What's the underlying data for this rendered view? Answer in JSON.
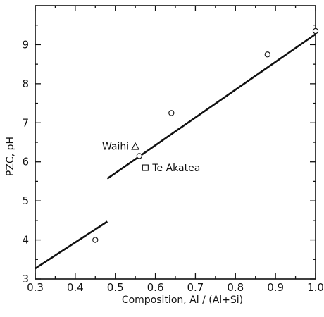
{
  "chart_data": {
    "type": "scatter",
    "xlabel": "Composition,  Al / (Al+Si)",
    "ylabel": "PZC,   pH",
    "xlim": [
      0.3,
      1.0
    ],
    "ylim": [
      3,
      10
    ],
    "xticks": [
      "0.3",
      "0.4",
      "0.5",
      "0.6",
      "0.7",
      "0.8",
      "0.9",
      "1.0"
    ],
    "yticks": [
      "3",
      "4",
      "5",
      "6",
      "7",
      "8",
      "9"
    ],
    "grid": false,
    "series": [
      {
        "marker": "circle",
        "points": [
          {
            "x": 0.45,
            "y": 4.0
          },
          {
            "x": 0.56,
            "y": 6.15
          },
          {
            "x": 0.64,
            "y": 7.25
          },
          {
            "x": 0.88,
            "y": 8.75
          },
          {
            "x": 1.0,
            "y": 9.35
          }
        ]
      },
      {
        "name": "Waihi",
        "marker": "triangle",
        "points": [
          {
            "x": 0.55,
            "y": 6.4
          }
        ]
      },
      {
        "name": "Te Akatea",
        "marker": "square",
        "points": [
          {
            "x": 0.575,
            "y": 5.85
          }
        ]
      }
    ],
    "fit_lines": [
      {
        "x": [
          0.3,
          0.48
        ],
        "y": [
          3.27,
          4.47
        ]
      },
      {
        "x": [
          0.48,
          1.0
        ],
        "y": [
          5.57,
          9.27
        ]
      }
    ]
  }
}
